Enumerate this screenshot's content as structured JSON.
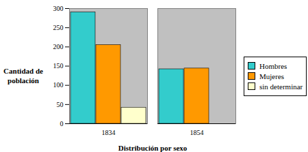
{
  "chart_data": {
    "type": "bar",
    "x_label": "Distribución por sexo",
    "y_label": "Cantidad de población",
    "categories": [
      "1834",
      "1854"
    ],
    "series": [
      {
        "name": "Hombres",
        "color": "#33cccc",
        "values": [
          290,
          142
        ]
      },
      {
        "name": "Mujeres",
        "color": "#ff9900",
        "values": [
          205,
          144
        ]
      },
      {
        "name": "sin determinar",
        "color": "#ffffcc",
        "values": [
          42,
          0
        ]
      }
    ],
    "ylim": [
      0,
      300
    ],
    "yticks": [
      0,
      50,
      100,
      150,
      200,
      250,
      300
    ],
    "grid": false,
    "legend": "right"
  }
}
